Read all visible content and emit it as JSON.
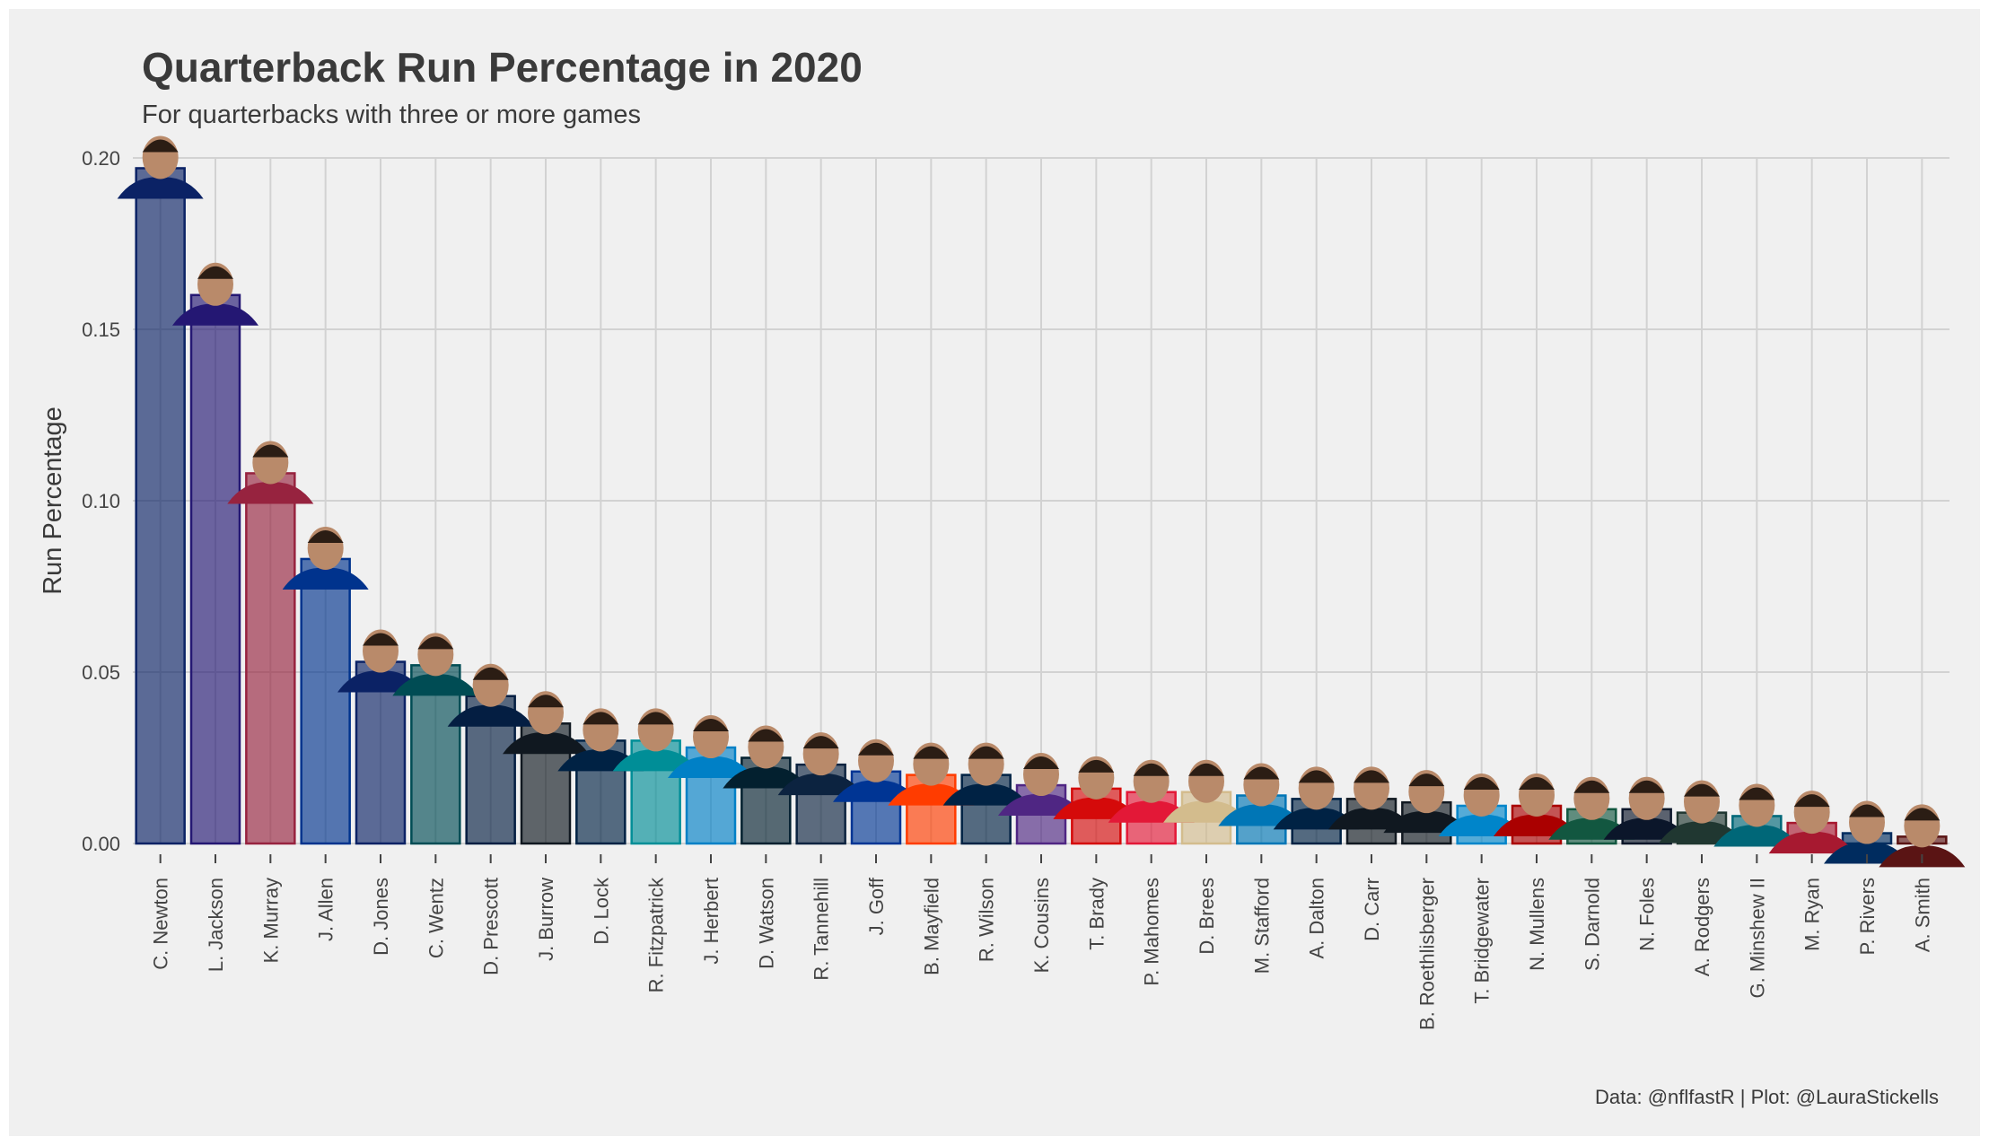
{
  "title": "Quarterback Run Percentage in 2020",
  "subtitle": "For quarterbacks with three or more games",
  "caption": "Data: @nflfastR | Plot: @LauraStickells",
  "chart_data": {
    "type": "bar",
    "ylabel": "Run Percentage",
    "xlabel": "",
    "ylim": [
      0,
      0.2
    ],
    "yticks": [
      "0.00",
      "0.05",
      "0.10",
      "0.15",
      "0.20"
    ],
    "grid": true,
    "categories": [
      "C. Newton",
      "L. Jackson",
      "K. Murray",
      "J. Allen",
      "D. Jones",
      "C. Wentz",
      "D. Prescott",
      "J. Burrow",
      "D. Lock",
      "R. Fitzpatrick",
      "J. Herbert",
      "D. Watson",
      "R. Tannehill",
      "J. Goff",
      "B. Mayfield",
      "R. Wilson",
      "K. Cousins",
      "T. Brady",
      "P. Mahomes",
      "D. Brees",
      "M. Stafford",
      "A. Dalton",
      "D. Carr",
      "B. Roethlisberger",
      "T. Bridgewater",
      "N. Mullens",
      "S. Darnold",
      "N. Foles",
      "A. Rodgers",
      "G. Minshew II",
      "M. Ryan",
      "P. Rivers",
      "A. Smith"
    ],
    "values": [
      0.197,
      0.16,
      0.108,
      0.083,
      0.053,
      0.052,
      0.043,
      0.035,
      0.03,
      0.03,
      0.028,
      0.025,
      0.023,
      0.021,
      0.02,
      0.02,
      0.017,
      0.016,
      0.015,
      0.015,
      0.014,
      0.013,
      0.013,
      0.012,
      0.011,
      0.011,
      0.01,
      0.01,
      0.009,
      0.008,
      0.006,
      0.003,
      0.002
    ],
    "colors": [
      "#0B2265",
      "#241773",
      "#97233F",
      "#00338D",
      "#0B2265",
      "#004C54",
      "#041E42",
      "#101820",
      "#002244",
      "#008E97",
      "#0080C6",
      "#03202F",
      "#0C2340",
      "#003594",
      "#FF3C00",
      "#002244",
      "#4F2683",
      "#D50A0A",
      "#E31837",
      "#D3BC8D",
      "#0076B6",
      "#002244",
      "#101820",
      "#101820",
      "#0085CA",
      "#AA0000",
      "#125740",
      "#0B162A",
      "#203731",
      "#006778",
      "#A71930",
      "#002C5F",
      "#5A1414"
    ]
  }
}
